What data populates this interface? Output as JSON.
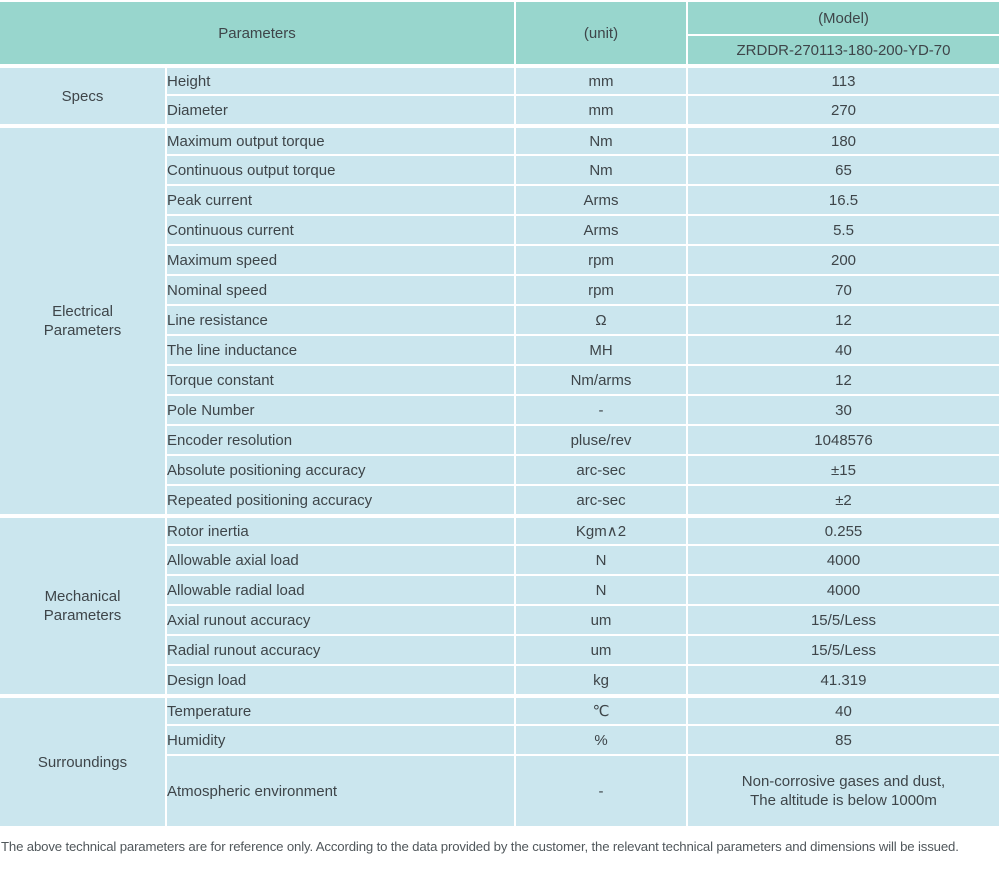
{
  "colors": {
    "header_bg": "#98d6cd",
    "row_bg": "#cbe6ee",
    "divider": "#ffffff",
    "text": "#3e4549",
    "footer_text": "#50575b"
  },
  "header": {
    "parameters_label": "Parameters",
    "unit_label": "(unit)",
    "model_label": "(Model)",
    "model_value": "ZRDDR-270113-180-200-YD-70"
  },
  "sections": [
    {
      "label": "Specs",
      "rows": [
        {
          "name": "Height",
          "unit": "mm",
          "value": "113"
        },
        {
          "name": "Diameter",
          "unit": "mm",
          "value": "270"
        }
      ]
    },
    {
      "label": "Electrical\nParameters",
      "rows": [
        {
          "name": "Maximum output torque",
          "unit": "Nm",
          "value": "180"
        },
        {
          "name": "Continuous output torque",
          "unit": "Nm",
          "value": "65"
        },
        {
          "name": "Peak current",
          "unit": "Arms",
          "value": "16.5"
        },
        {
          "name": "Continuous current",
          "unit": "Arms",
          "value": "5.5"
        },
        {
          "name": "Maximum speed",
          "unit": "rpm",
          "value": "200"
        },
        {
          "name": "Nominal speed",
          "unit": "rpm",
          "value": "70"
        },
        {
          "name": "Line resistance",
          "unit": "Ω",
          "value": "12"
        },
        {
          "name": "The line inductance",
          "unit": "MH",
          "value": "40"
        },
        {
          "name": "Torque constant",
          "unit": "Nm/arms",
          "value": "12"
        },
        {
          "name": "Pole Number",
          "unit": "-",
          "value": "30"
        },
        {
          "name": "Encoder resolution",
          "unit": "pluse/rev",
          "value": "1048576"
        },
        {
          "name": "Absolute positioning accuracy",
          "unit": "arc-sec",
          "value": "±15"
        },
        {
          "name": "Repeated positioning accuracy",
          "unit": "arc-sec",
          "value": "±2"
        }
      ]
    },
    {
      "label": "Mechanical\nParameters",
      "rows": [
        {
          "name": "Rotor inertia",
          "unit": "Kgm∧2",
          "value": "0.255"
        },
        {
          "name": "Allowable axial load",
          "unit": "N",
          "value": "4000"
        },
        {
          "name": "Allowable radial load",
          "unit": "N",
          "value": "4000"
        },
        {
          "name": "Axial runout accuracy",
          "unit": "um",
          "value": "15/5/Less"
        },
        {
          "name": "Radial runout accuracy",
          "unit": "um",
          "value": "15/5/Less"
        },
        {
          "name": "Design load",
          "unit": "kg",
          "value": "41.319"
        }
      ]
    },
    {
      "label": "Surroundings",
      "rows": [
        {
          "name": "Temperature",
          "unit": "℃",
          "value": "40"
        },
        {
          "name": "Humidity",
          "unit": "%",
          "value": "85"
        },
        {
          "name": "Atmospheric environment",
          "unit": "-",
          "value": "Non-corrosive gases and dust,\nThe altitude is below 1000m"
        }
      ]
    }
  ],
  "footer": {
    "note": "The above technical parameters are for reference only. According to the data provided by the customer, the relevant technical parameters and dimensions will be issued."
  }
}
